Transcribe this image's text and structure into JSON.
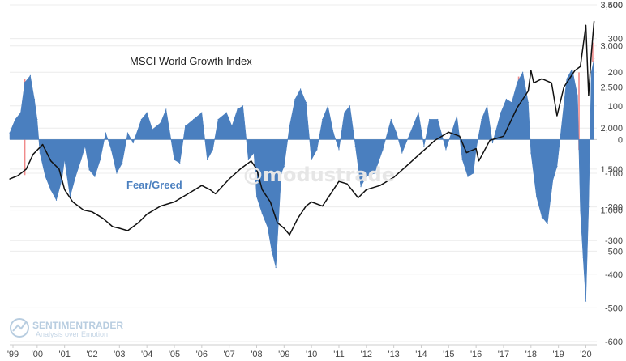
{
  "colors": {
    "price_line": "#111111",
    "fear_greed": "#4a7fbf",
    "signal_line": "#f08a8a",
    "logo": "#b8cde0"
  },
  "watermark": "@modustrade",
  "logo": {
    "icon": "sentimentrader-logo-icon",
    "name": "SENTIMENTRADER",
    "tagline": "Analysis over Emotion"
  },
  "chart_data": [
    {
      "type": "line",
      "title": "MSCI World Growth Index",
      "x": [
        1999.0,
        1999.3,
        1999.6,
        1999.85,
        2000.2,
        2000.5,
        2000.8,
        2001.0,
        2001.3,
        2001.7,
        2002.0,
        2002.4,
        2002.75,
        2003.0,
        2003.3,
        2003.7,
        2004.0,
        2004.5,
        2005.0,
        2005.5,
        2006.0,
        2006.3,
        2006.5,
        2007.0,
        2007.4,
        2007.8,
        2008.0,
        2008.2,
        2008.5,
        2008.75,
        2009.0,
        2009.2,
        2009.5,
        2009.8,
        2010.0,
        2010.4,
        2010.7,
        2011.0,
        2011.3,
        2011.7,
        2012.0,
        2012.5,
        2013.0,
        2013.5,
        2014.0,
        2014.5,
        2015.0,
        2015.4,
        2015.65,
        2016.0,
        2016.1,
        2016.5,
        2017.0,
        2017.5,
        2017.9,
        2018.0,
        2018.1,
        2018.4,
        2018.75,
        2018.95,
        2019.2,
        2019.6,
        2019.8,
        2019.9,
        2020.0,
        2020.1,
        2020.2,
        2020.3
      ],
      "y": [
        1380,
        1420,
        1500,
        1680,
        1800,
        1600,
        1500,
        1250,
        1100,
        1000,
        980,
        900,
        800,
        780,
        750,
        850,
        950,
        1050,
        1100,
        1200,
        1300,
        1250,
        1200,
        1380,
        1500,
        1600,
        1500,
        1250,
        1100,
        850,
        780,
        700,
        900,
        1050,
        1100,
        1050,
        1200,
        1350,
        1320,
        1150,
        1250,
        1300,
        1400,
        1550,
        1700,
        1850,
        1950,
        1900,
        1700,
        1750,
        1600,
        1850,
        1900,
        2250,
        2450,
        2700,
        2550,
        2600,
        2550,
        2150,
        2500,
        2700,
        2750,
        3000,
        3250,
        2400,
        2900,
        3300
      ],
      "xlim": [
        1999,
        2020.4
      ],
      "ylim": [
        -600,
        3500
      ]
    },
    {
      "type": "area",
      "title": "Fear/Greed",
      "x": [
        1999.0,
        1999.2,
        1999.4,
        1999.55,
        1999.75,
        1999.9,
        2000.0,
        2000.1,
        2000.3,
        2000.5,
        2000.7,
        2000.9,
        2001.0,
        2001.2,
        2001.4,
        2001.6,
        2001.75,
        2001.9,
        2002.1,
        2002.3,
        2002.5,
        2002.7,
        2002.9,
        2003.1,
        2003.3,
        2003.5,
        2003.8,
        2004.0,
        2004.2,
        2004.5,
        2004.7,
        2005.0,
        2005.2,
        2005.4,
        2005.7,
        2006.0,
        2006.2,
        2006.4,
        2006.6,
        2006.9,
        2007.1,
        2007.3,
        2007.5,
        2007.7,
        2007.9,
        2008.0,
        2008.2,
        2008.4,
        2008.55,
        2008.7,
        2008.9,
        2009.0,
        2009.2,
        2009.4,
        2009.6,
        2009.8,
        2010.0,
        2010.2,
        2010.4,
        2010.6,
        2010.8,
        2011.0,
        2011.2,
        2011.4,
        2011.6,
        2011.8,
        2012.0,
        2012.3,
        2012.6,
        2012.9,
        2013.1,
        2013.3,
        2013.6,
        2013.9,
        2014.1,
        2014.3,
        2014.6,
        2014.9,
        2015.1,
        2015.3,
        2015.5,
        2015.7,
        2015.9,
        2016.0,
        2016.2,
        2016.4,
        2016.6,
        2016.9,
        2017.1,
        2017.3,
        2017.5,
        2017.7,
        2017.9,
        2018.0,
        2018.2,
        2018.4,
        2018.6,
        2018.8,
        2018.95,
        2019.1,
        2019.3,
        2019.5,
        2019.7,
        2019.8,
        2019.9,
        2020.0,
        2020.1,
        2020.2,
        2020.3
      ],
      "y": [
        20,
        60,
        80,
        170,
        190,
        120,
        60,
        -40,
        -110,
        -150,
        -180,
        -120,
        -60,
        -170,
        -110,
        -60,
        -20,
        -90,
        -110,
        -60,
        20,
        -30,
        -100,
        -70,
        20,
        -10,
        60,
        80,
        30,
        50,
        90,
        -60,
        -70,
        40,
        60,
        80,
        -60,
        -30,
        60,
        80,
        40,
        90,
        100,
        -60,
        -40,
        -170,
        -220,
        -260,
        -330,
        -380,
        -100,
        -80,
        40,
        120,
        150,
        110,
        -60,
        -30,
        60,
        100,
        20,
        -30,
        80,
        100,
        -20,
        -140,
        -110,
        -100,
        -30,
        60,
        20,
        -40,
        20,
        80,
        -20,
        60,
        60,
        -30,
        20,
        70,
        -60,
        -110,
        -100,
        -30,
        60,
        100,
        -10,
        80,
        120,
        110,
        170,
        200,
        110,
        -40,
        -170,
        -230,
        -250,
        -120,
        -80,
        30,
        180,
        210,
        130,
        -210,
        -350,
        -480,
        -200,
        200,
        240
      ],
      "xlim": [
        1999,
        2020.4
      ],
      "ylim": [
        -600,
        400
      ]
    }
  ],
  "y_axis": {
    "top_ticks": [
      "3,500",
      "3,000",
      "2,500",
      "2,000",
      "1,500",
      "1,000",
      "500"
    ],
    "top_values": [
      3500,
      3000,
      2500,
      2000,
      1500,
      1000,
      500
    ],
    "bottom_ticks": [
      "400",
      "300",
      "200",
      "100",
      "0",
      "-100",
      "-200",
      "-300",
      "-400",
      "-500",
      "-600"
    ],
    "bottom_values": [
      400,
      300,
      200,
      100,
      0,
      -100,
      -200,
      -300,
      -400,
      -500,
      -600
    ]
  },
  "x_axis": {
    "ticks": [
      "'99",
      "'00",
      "'01",
      "'02",
      "'03",
      "'04",
      "'05",
      "'06",
      "'07",
      "'08",
      "'09",
      "'10",
      "'11",
      "'12",
      "'13",
      "'14",
      "'15",
      "'16",
      "'17",
      "'18",
      "'19",
      "'20"
    ],
    "values": [
      1999,
      2000,
      2001,
      2002,
      2003,
      2004,
      2005,
      2006,
      2007,
      2008,
      2009,
      2010,
      2011,
      2012,
      2013,
      2014,
      2015,
      2016,
      2017,
      2018,
      2019,
      2020
    ]
  },
  "signals": [
    1999.55,
    2017.55,
    2019.75,
    2020.25
  ]
}
